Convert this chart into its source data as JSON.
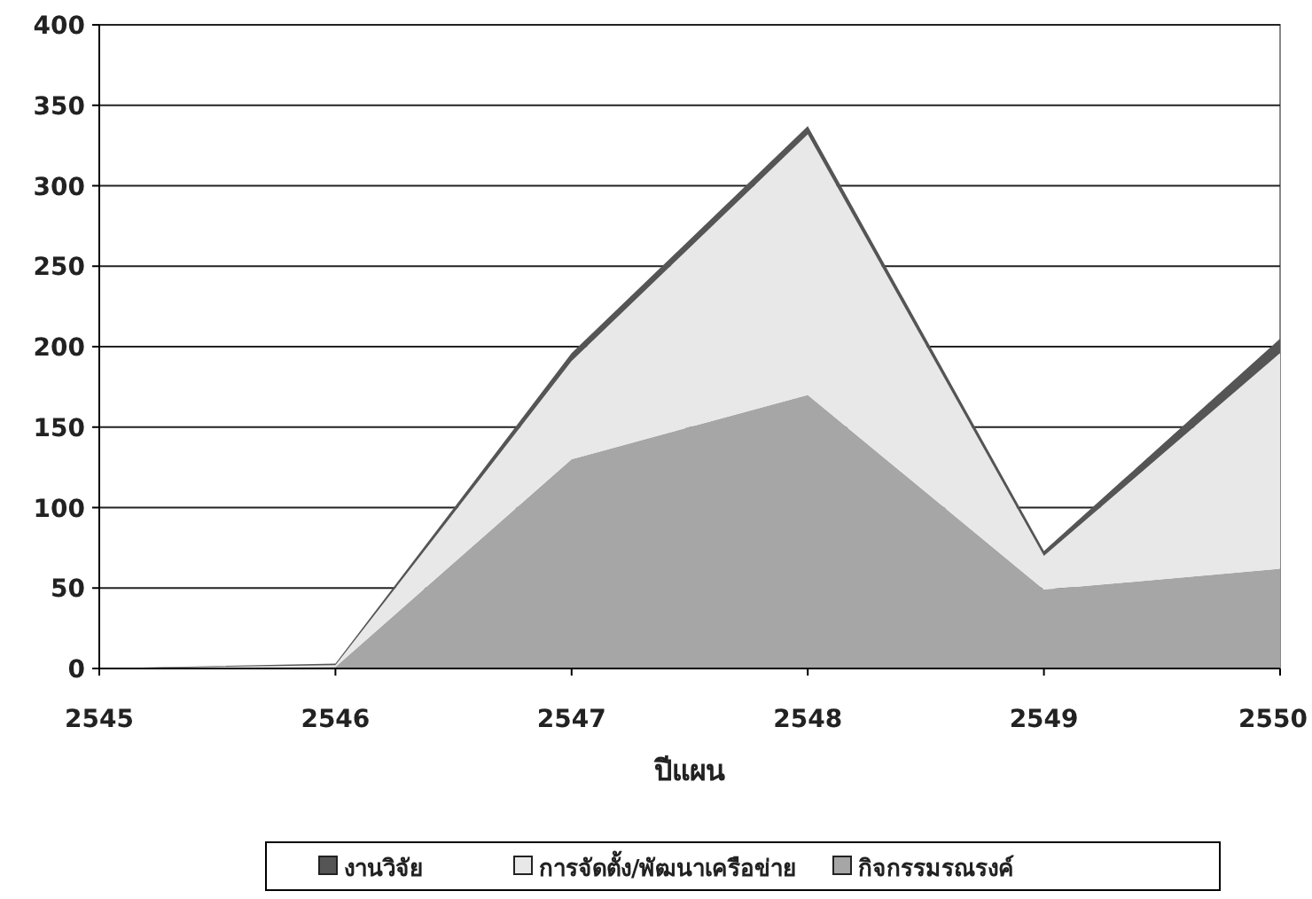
{
  "chart_data": {
    "type": "area",
    "stacked": true,
    "xlabel": "ปีแผน",
    "categories": [
      "2545",
      "2546",
      "2547",
      "2548",
      "2549",
      "2550"
    ],
    "series": [
      {
        "name": "กิจกรรมรณรงค์",
        "color": "#a6a6a6",
        "values": [
          0,
          1,
          130,
          170,
          49,
          62
        ]
      },
      {
        "name": "การจัดตั้ง/พัฒนาเครือข่าย",
        "color": "#e8e8e8",
        "values": [
          0,
          1,
          61,
          162,
          21,
          134
        ]
      },
      {
        "name": "งานวิจัย",
        "color": "#555555",
        "values": [
          0,
          1,
          5,
          5,
          3,
          9
        ]
      }
    ],
    "ylim": [
      0,
      400
    ],
    "yticks": [
      0,
      50,
      100,
      150,
      200,
      250,
      300,
      350,
      400
    ],
    "grid": "y",
    "legend": "bottom"
  }
}
